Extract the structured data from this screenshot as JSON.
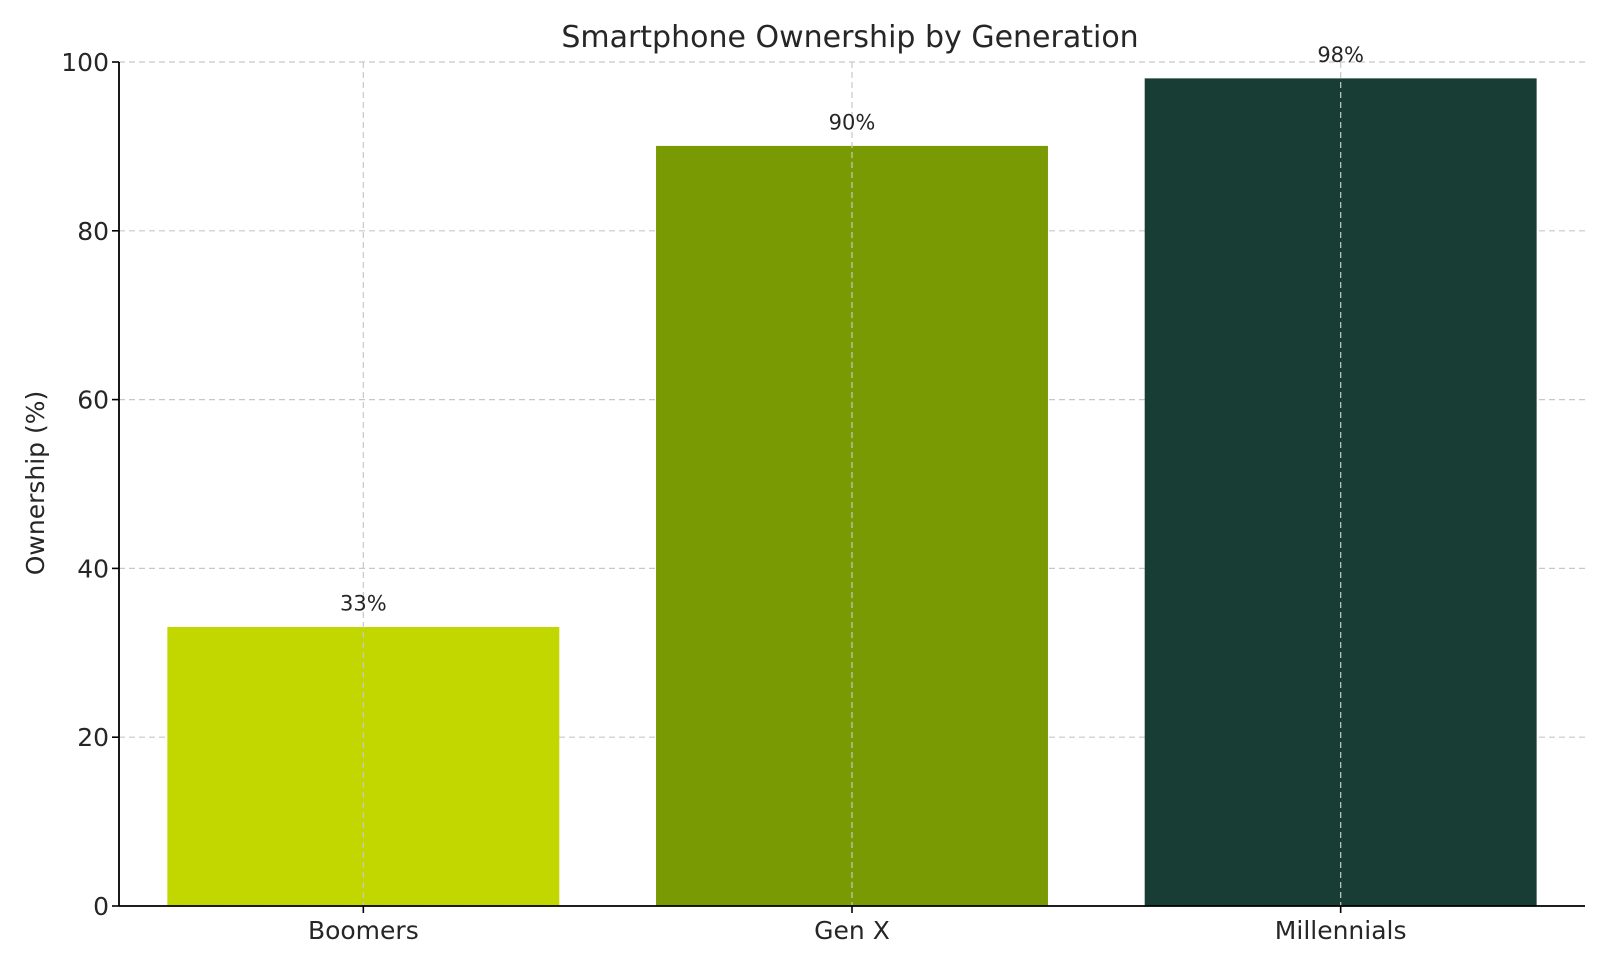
{
  "chart_data": {
    "type": "bar",
    "title": "Smartphone Ownership by Generation",
    "xlabel": "",
    "ylabel": "Ownership (%)",
    "categories": [
      "Boomers",
      "Gen X",
      "Millennials"
    ],
    "values": [
      33,
      90,
      98
    ],
    "data_labels": [
      "33%",
      "90%",
      "98%"
    ],
    "colors": [
      "#c2d600",
      "#7a9a04",
      "#173d35"
    ],
    "ylim": [
      0,
      100
    ],
    "yticks": [
      0,
      20,
      40,
      60,
      80,
      100
    ],
    "grid": true,
    "legend": "none"
  }
}
